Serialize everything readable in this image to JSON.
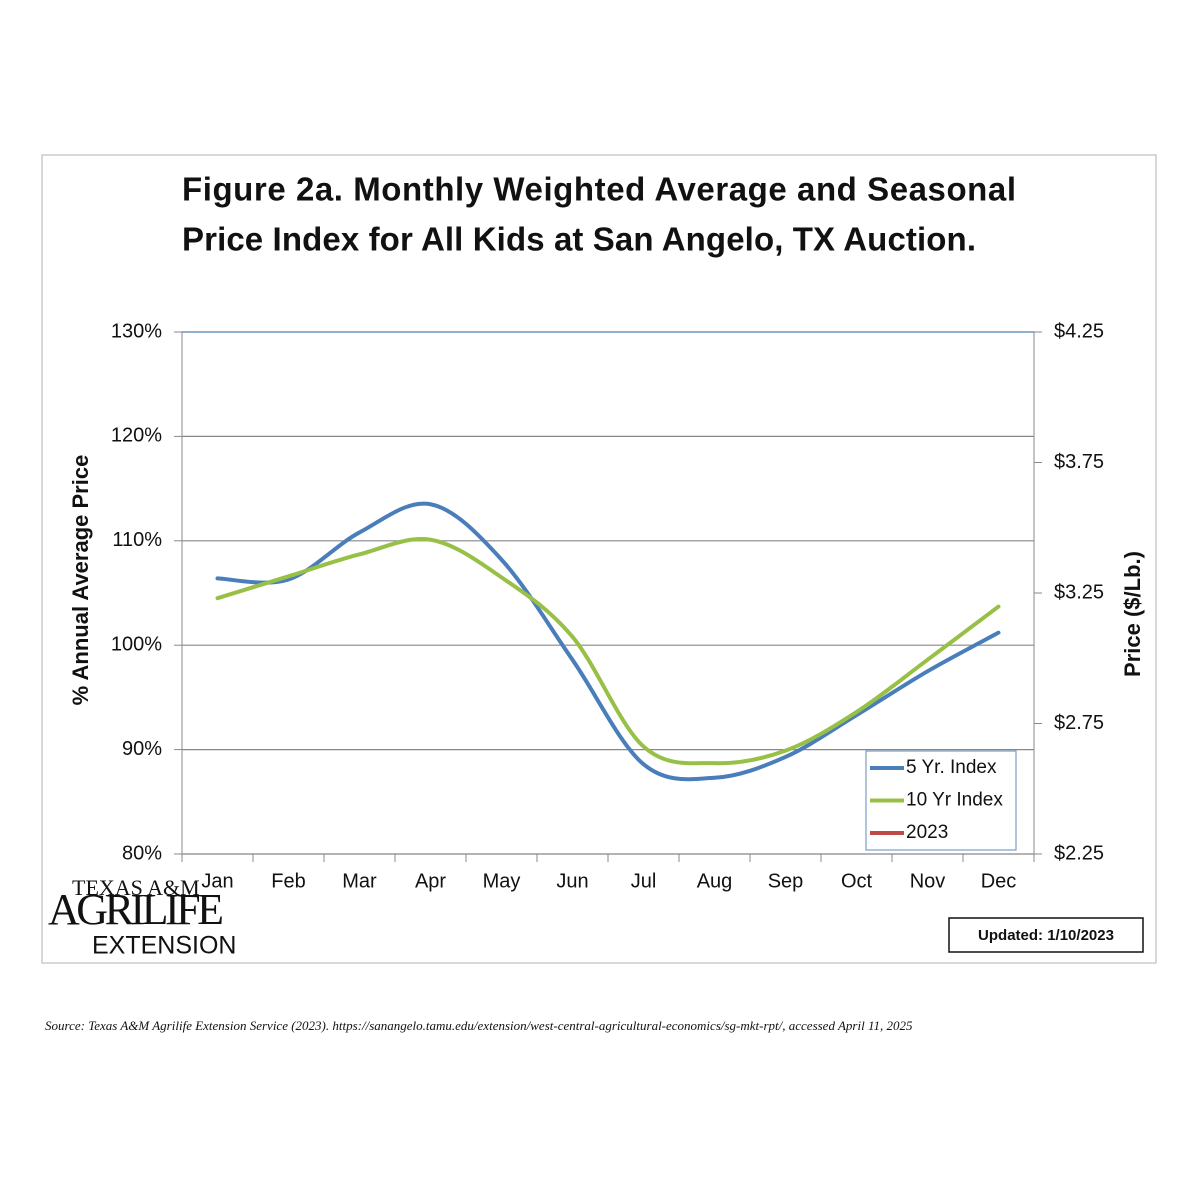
{
  "chart_data": {
    "type": "line",
    "title": [
      "Figure 2a. Monthly Weighted Average and Seasonal",
      "Price Index for All Kids at San Angelo, TX Auction."
    ],
    "ylabel": "% Annual Average Price",
    "y2label": "Price ($/Lb.)",
    "categories": [
      "Jan",
      "Feb",
      "Mar",
      "Apr",
      "May",
      "Jun",
      "Jul",
      "Aug",
      "Sep",
      "Oct",
      "Nov",
      "Dec"
    ],
    "series": [
      {
        "name": "5 Yr. Index",
        "color": "#4a7ebb",
        "values": [
          106.4,
          106.3,
          110.8,
          113.5,
          108.2,
          98.6,
          88.6,
          87.3,
          89.3,
          93.3,
          97.5,
          101.2
        ]
      },
      {
        "name": "10 Yr Index",
        "color": "#98c046",
        "values": [
          104.5,
          106.6,
          108.7,
          110.1,
          106.5,
          100.8,
          90.3,
          88.7,
          89.9,
          93.6,
          98.6,
          103.7
        ]
      },
      {
        "name": "2023",
        "color": "#be4b48",
        "values": [
          null,
          null,
          null,
          null,
          null,
          null,
          null,
          null,
          null,
          null,
          null,
          null
        ]
      }
    ],
    "ylim": [
      80,
      130
    ],
    "yticks": [
      {
        "value": 80,
        "label": "80%"
      },
      {
        "value": 90,
        "label": "90%"
      },
      {
        "value": 100,
        "label": "100%"
      },
      {
        "value": 110,
        "label": "110%"
      },
      {
        "value": 120,
        "label": "120%"
      },
      {
        "value": 130,
        "label": "130%"
      }
    ],
    "y2lim": [
      2.25,
      4.25
    ],
    "y2ticks": [
      {
        "value": 2.25,
        "label": "$2.25"
      },
      {
        "value": 2.75,
        "label": "$2.75"
      },
      {
        "value": 3.25,
        "label": "$3.25"
      },
      {
        "value": 3.75,
        "label": "$3.75"
      },
      {
        "value": 4.25,
        "label": "$4.25"
      }
    ],
    "grid": true,
    "legend": "lower right",
    "logo": [
      "TEXAS A&M",
      "AGRILIFE",
      "EXTENSION"
    ],
    "updated": "Updated: 1/10/2023"
  },
  "source": "Source: Texas A&M Agrilife Extension Service (2023). https://sanangelo.tamu.edu/extension/west-central-agricultural-economics/sg-mkt-rpt/, accessed April 11, 2025"
}
